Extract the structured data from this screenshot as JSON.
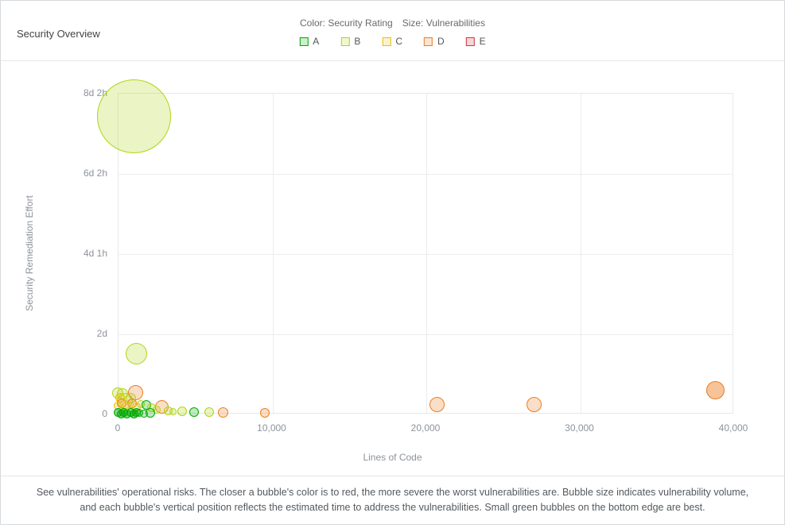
{
  "header": {
    "title": "Security Overview",
    "legend": {
      "color_label": "Color: Security Rating",
      "size_label": "Size: Vulnerabilities",
      "ratings": [
        {
          "label": "A"
        },
        {
          "label": "B"
        },
        {
          "label": "C"
        },
        {
          "label": "D"
        },
        {
          "label": "E"
        }
      ]
    }
  },
  "colors": {
    "ratings": {
      "A": {
        "border": "#00aa00",
        "rgb": "0,170,0",
        "alpha": 0.25
      },
      "B": {
        "border": "#b0d513",
        "rgb": "176,213,19",
        "alpha": 0.25
      },
      "C": {
        "border": "#eabe06",
        "rgb": "234,190,6",
        "alpha": 0.25
      },
      "D": {
        "border": "#ed7d20",
        "rgb": "237,125,32",
        "alpha": 0.25
      },
      "E": {
        "border": "#d4333f",
        "rgb": "212,51,63",
        "alpha": 0.25
      }
    },
    "legend_chip_alpha": 0.2,
    "gridline": "#ececec"
  },
  "chart_data": {
    "type": "scatter",
    "subtype": "bubble",
    "title": "Security Overview",
    "xlabel": "Lines of Code",
    "ylabel": "Security Remediation Effort",
    "xlim": [
      0,
      40000
    ],
    "ylim_minutes": [
      0,
      3960
    ],
    "grid": true,
    "x_ticks": [
      {
        "value": 0,
        "label": "0"
      },
      {
        "value": 10000,
        "label": "10,000"
      },
      {
        "value": 20000,
        "label": "20,000"
      },
      {
        "value": 30000,
        "label": "30,000"
      },
      {
        "value": 40000,
        "label": "40,000"
      }
    ],
    "y_ticks": [
      {
        "value": 0,
        "label": "0"
      },
      {
        "value": 990,
        "label": "2d"
      },
      {
        "value": 1980,
        "label": "4d 1h"
      },
      {
        "value": 2970,
        "label": "6d 2h"
      },
      {
        "value": 3960,
        "label": "8d 2h"
      }
    ],
    "bubbles": [
      {
        "loc": 1085,
        "effort_min": 3668,
        "r": 46.5,
        "rating": "B"
      },
      {
        "loc": 1240,
        "effort_min": 743,
        "r": 13.5,
        "rating": "B"
      },
      {
        "loc": 465,
        "effort_min": 156,
        "r": 10,
        "rating": "B"
      },
      {
        "loc": 1137,
        "effort_min": 264,
        "r": 9.5,
        "rating": "D"
      },
      {
        "loc": 0,
        "effort_min": 254,
        "r": 7,
        "rating": "B"
      },
      {
        "loc": 310,
        "effort_min": 245,
        "r": 7,
        "rating": "B"
      },
      {
        "loc": 155,
        "effort_min": 196,
        "r": 6,
        "rating": "C"
      },
      {
        "loc": 827,
        "effort_min": 196,
        "r": 6.5,
        "rating": "B"
      },
      {
        "loc": 930,
        "effort_min": 127,
        "r": 6,
        "rating": "D"
      },
      {
        "loc": 258,
        "effort_min": 127,
        "r": 6,
        "rating": "D"
      },
      {
        "loc": 568,
        "effort_min": 98,
        "r": 5.5,
        "rating": "C"
      },
      {
        "loc": 0,
        "effort_min": 98,
        "r": 5,
        "rating": "C"
      },
      {
        "loc": 1189,
        "effort_min": 88,
        "r": 5.5,
        "rating": "C"
      },
      {
        "loc": 1499,
        "effort_min": 117,
        "r": 5,
        "rating": "B"
      },
      {
        "loc": 1860,
        "effort_min": 108,
        "r": 6,
        "rating": "A"
      },
      {
        "loc": 2171,
        "effort_min": 78,
        "r": 5.5,
        "rating": "B"
      },
      {
        "loc": 2894,
        "effort_min": 88,
        "r": 8.5,
        "rating": "D"
      },
      {
        "loc": 2532,
        "effort_min": 49,
        "r": 5,
        "rating": "B"
      },
      {
        "loc": 3256,
        "effort_min": 39,
        "r": 5.5,
        "rating": "B"
      },
      {
        "loc": 3566,
        "effort_min": 20,
        "r": 4.5,
        "rating": "B"
      },
      {
        "loc": 20,
        "effort_min": 10,
        "r": 5.5,
        "rating": "A",
        "a": 0.5
      },
      {
        "loc": 207,
        "effort_min": 0,
        "r": 5.5,
        "rating": "A",
        "a": 0.5
      },
      {
        "loc": 413,
        "effort_min": 10,
        "r": 5.5,
        "rating": "A",
        "a": 0.5
      },
      {
        "loc": 620,
        "effort_min": 0,
        "r": 5.5,
        "rating": "A",
        "a": 0.5
      },
      {
        "loc": 827,
        "effort_min": 10,
        "r": 5.5,
        "rating": "A",
        "a": 0.5
      },
      {
        "loc": 1034,
        "effort_min": 0,
        "r": 5.5,
        "rating": "A",
        "a": 0.5
      },
      {
        "loc": 1189,
        "effort_min": 10,
        "r": 5.5,
        "rating": "A",
        "a": 0.5
      },
      {
        "loc": 1395,
        "effort_min": 10,
        "r": 5,
        "rating": "A"
      },
      {
        "loc": 1705,
        "effort_min": 0,
        "r": 5,
        "rating": "A"
      },
      {
        "loc": 2119,
        "effort_min": 10,
        "r": 6,
        "rating": "A"
      },
      {
        "loc": 4186,
        "effort_min": 29,
        "r": 6,
        "rating": "B"
      },
      {
        "loc": 4961,
        "effort_min": 20,
        "r": 6,
        "rating": "A"
      },
      {
        "loc": 5943,
        "effort_min": 20,
        "r": 6,
        "rating": "B"
      },
      {
        "loc": 6873,
        "effort_min": 10,
        "r": 6.5,
        "rating": "D"
      },
      {
        "loc": 9560,
        "effort_min": 10,
        "r": 6,
        "rating": "D"
      },
      {
        "loc": 20775,
        "effort_min": 117,
        "r": 9.5,
        "rating": "D"
      },
      {
        "loc": 27080,
        "effort_min": 108,
        "r": 9.5,
        "rating": "D"
      },
      {
        "loc": 38863,
        "effort_min": 293,
        "r": 11.5,
        "rating": "D",
        "a": 0.45
      }
    ]
  },
  "footer": {
    "line1": "See vulnerabilities' operational risks. The closer a bubble's color is to red, the more severe the worst vulnerabilities are. Bubble size indicates vulnerability volume,",
    "line2": "and each bubble's vertical position reflects the estimated time to address the vulnerabilities. Small green bubbles on the bottom edge are best."
  }
}
